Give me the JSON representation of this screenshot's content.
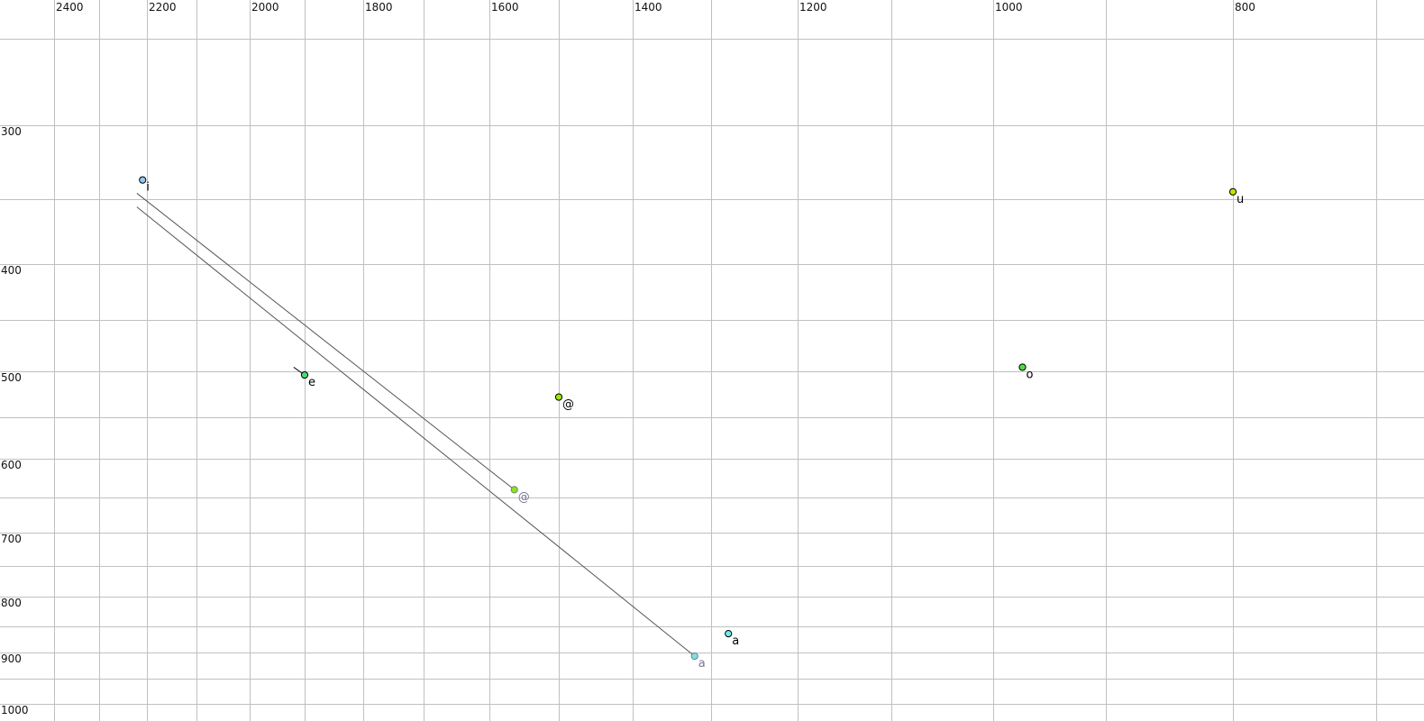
{
  "chart_data": {
    "type": "scatter",
    "title": "",
    "xlabel": "",
    "ylabel": "",
    "x_axis": {
      "reversed": true,
      "scale": "nonlinear (auditory)",
      "range": [
        2400,
        700
      ],
      "tick_labels": [
        "2400",
        "2200",
        "2000",
        "1800",
        "1600",
        "1400",
        "1200",
        "1000",
        "800"
      ],
      "gridlines": [
        2400,
        2300,
        2200,
        2100,
        2000,
        1900,
        1800,
        1700,
        1600,
        1500,
        1400,
        1300,
        1200,
        1100,
        1000,
        900,
        800,
        700
      ]
    },
    "y_axis": {
      "reversed": true,
      "scale": "nonlinear (auditory)",
      "range": [
        250,
        1000
      ],
      "tick_labels": [
        "300",
        "400",
        "500",
        "600",
        "700",
        "800",
        "900",
        "1000"
      ],
      "gridlines": [
        250,
        300,
        350,
        400,
        450,
        500,
        550,
        600,
        650,
        700,
        750,
        800,
        850,
        900,
        950,
        1000
      ]
    },
    "grid": true,
    "points": [
      {
        "label": "i",
        "x": 2209,
        "y": 337,
        "color": "#8ecbf5",
        "faded": false
      },
      {
        "label": "u",
        "x": 800,
        "y": 345,
        "color": "#c8e000",
        "faded": false
      },
      {
        "label": "e",
        "x": 1900,
        "y": 504,
        "color": "#48dc78",
        "faded": false
      },
      {
        "label": "o",
        "x": 974,
        "y": 496,
        "color": "#48e040",
        "faded": false
      },
      {
        "label": "@",
        "x": 1500,
        "y": 528,
        "color": "#a0e800",
        "faded": false
      },
      {
        "label": "@",
        "x": 1564,
        "y": 640,
        "color": "#90e020",
        "faded": true
      },
      {
        "label": "a",
        "x": 1280,
        "y": 864,
        "color": "#70eaea",
        "faded": false
      },
      {
        "label": "a",
        "x": 1321,
        "y": 907,
        "color": "#80dcf0",
        "faded": true
      }
    ],
    "trajectories": [
      {
        "from": [
          2221,
          346
        ],
        "to": [
          1564,
          640
        ]
      },
      {
        "from": [
          2221,
          356
        ],
        "to": [
          1321,
          907
        ]
      },
      {
        "from": [
          1920,
          496
        ],
        "to": [
          1900,
          504
        ]
      }
    ]
  }
}
